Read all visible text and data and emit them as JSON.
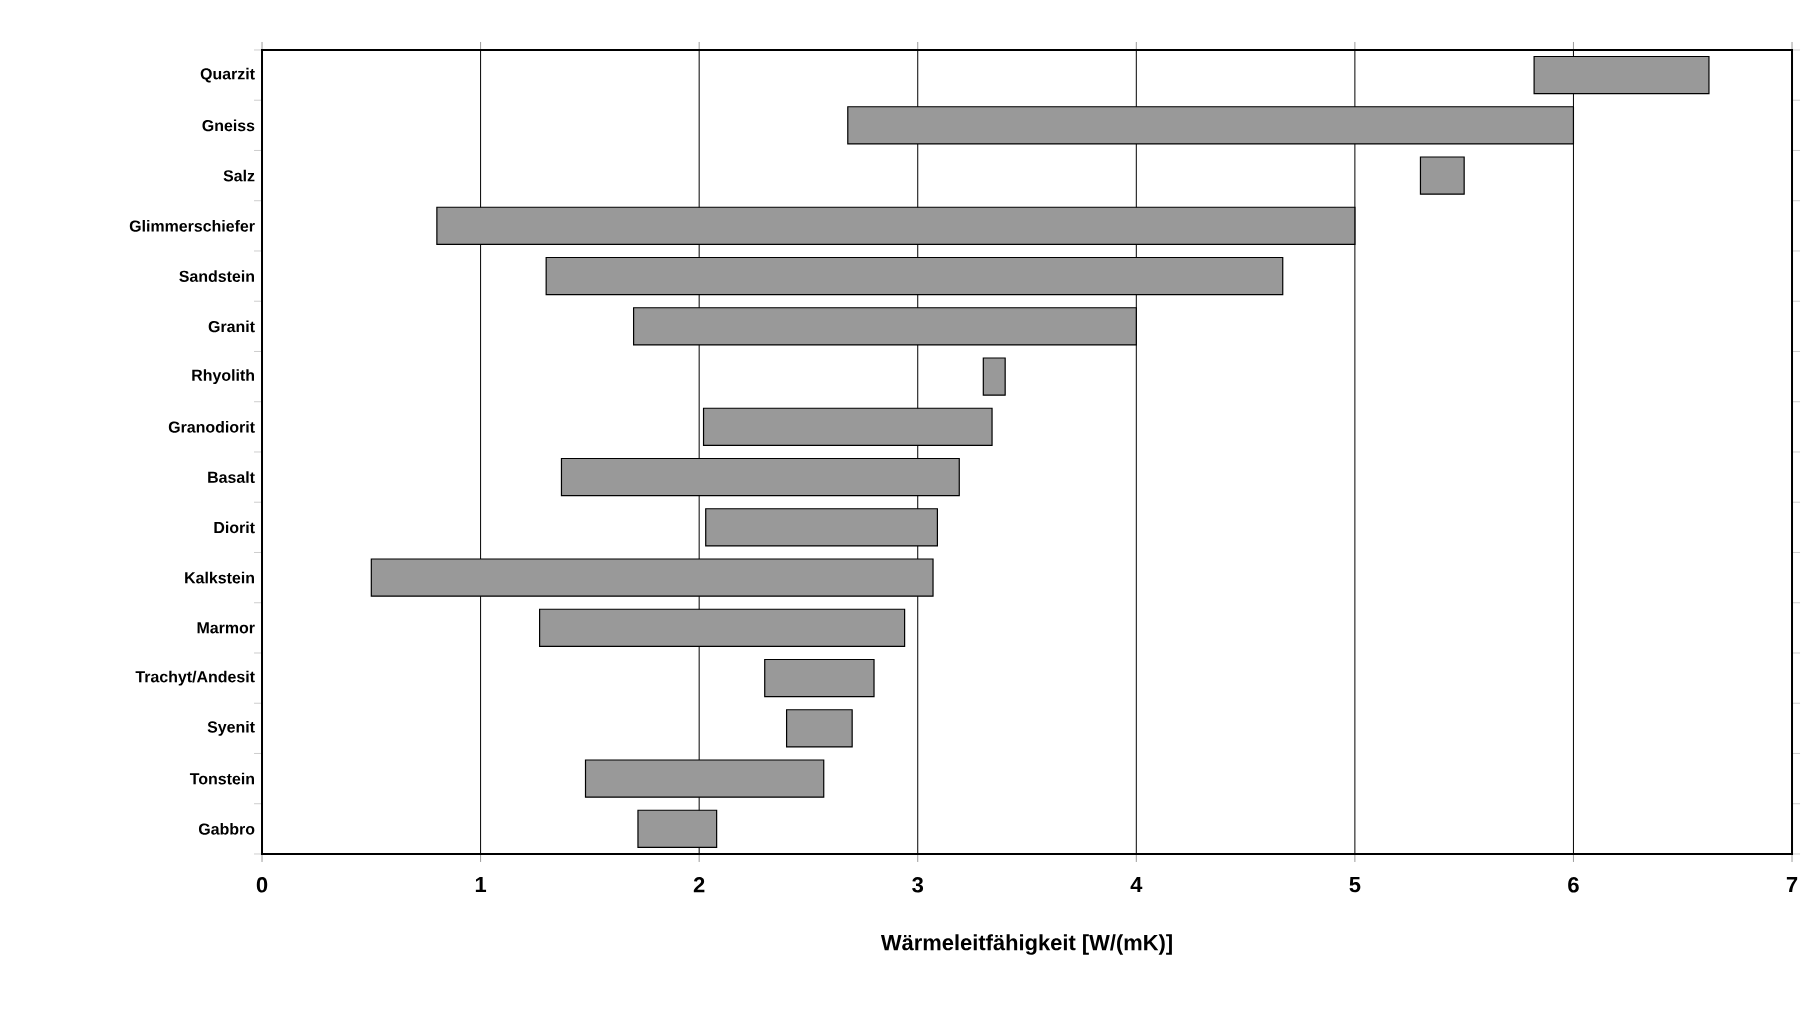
{
  "chart_data": {
    "type": "bar",
    "orientation": "horizontal",
    "xlabel": "Wärmeleitfähigkeit [W/(mK)]",
    "categories": [
      "Quarzit",
      "Gneiss",
      "Salz",
      "Glimmerschiefer",
      "Sandstein",
      "Granit",
      "Rhyolith",
      "Granodiorit",
      "Basalt",
      "Diorit",
      "Kalkstein",
      "Marmor",
      "Trachyt/Andesit",
      "Syenit",
      "Tonstein",
      "Gabbro"
    ],
    "base": [
      5.82,
      2.68,
      5.3,
      0.8,
      1.3,
      1.7,
      3.3,
      2.02,
      1.37,
      2.03,
      0.5,
      1.27,
      2.3,
      2.4,
      1.48,
      1.72
    ],
    "values": [
      0.8,
      3.32,
      0.2,
      4.2,
      3.37,
      2.3,
      0.1,
      1.32,
      1.82,
      1.06,
      2.57,
      1.67,
      0.5,
      0.3,
      1.09,
      0.36
    ],
    "color": "#999999",
    "xlim": [
      0,
      7
    ],
    "xticks": [
      0,
      1,
      2,
      3,
      4,
      5,
      6,
      7
    ],
    "grid": "x"
  }
}
